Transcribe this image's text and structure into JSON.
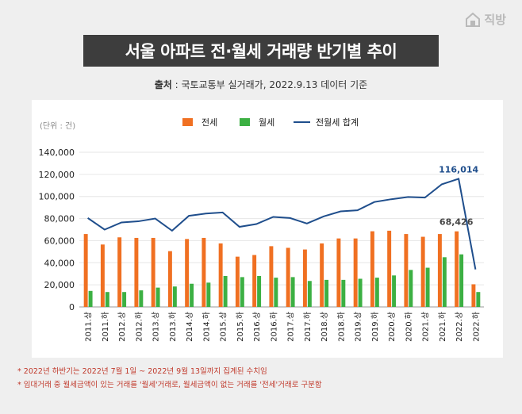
{
  "logo": {
    "text": "직방",
    "icon": "house-icon"
  },
  "title": "서울 아파트 전·월세 거래량 반기별 추이",
  "source": {
    "label": "출처",
    "text": " : 국토교통부 실거래가, 2022.9.13 데이터 기준"
  },
  "notes": [
    "* 2022년 하반기는 2022년 7월 1일 ~ 2022년 9월 13일까지 집계된 수치임",
    "* 임대거래 중 월세금액이 있는 거래를 '월세'거래로, 월세금액이 없는 거래를 '전세'거래로 구분함"
  ],
  "chart_data": {
    "type": "bar",
    "unit_label": "(단위 : 건)",
    "categories": [
      "2011.상",
      "2011.하",
      "2012.상",
      "2012.하",
      "2013.상",
      "2013.하",
      "2014.상",
      "2014.하",
      "2015.상",
      "2015.하",
      "2016.상",
      "2016.하",
      "2017.상",
      "2017.하",
      "2018.상",
      "2018.하",
      "2019.상",
      "2019.하",
      "2020.상",
      "2020.하",
      "2021.상",
      "2021.하",
      "2022.상",
      "2022.하"
    ],
    "series": [
      {
        "name": "전세",
        "type": "bar",
        "color": "#f07022",
        "values": [
          66000,
          56500,
          63000,
          62500,
          62500,
          50500,
          61500,
          62500,
          57500,
          45500,
          47000,
          55000,
          53500,
          52000,
          57500,
          62000,
          62000,
          68500,
          69000,
          66000,
          63500,
          66000,
          68426,
          20500
        ]
      },
      {
        "name": "월세",
        "type": "bar",
        "color": "#3cb043",
        "values": [
          14500,
          13500,
          13500,
          15000,
          17500,
          18500,
          21000,
          22000,
          28000,
          27000,
          28000,
          26500,
          27000,
          23500,
          24500,
          24500,
          25500,
          26500,
          28500,
          33500,
          35500,
          45000,
          47588,
          13500
        ]
      },
      {
        "name": "전월세 합계",
        "type": "line",
        "color": "#1f4e8c",
        "values": [
          80500,
          70000,
          76500,
          77500,
          80000,
          69000,
          82500,
          84500,
          85500,
          72500,
          75000,
          81500,
          80500,
          75500,
          82000,
          86500,
          87500,
          95000,
          97500,
          99500,
          99000,
          111000,
          116014,
          34000
        ]
      }
    ],
    "ylim": [
      0,
      140000
    ],
    "yticks": [
      "0",
      "20,000",
      "40,000",
      "60,000",
      "80,000",
      "100,000",
      "120,000",
      "140,000"
    ],
    "annotations": [
      {
        "text": "116,014",
        "series": "전월세 합계",
        "category": "2022.상"
      },
      {
        "text": "68,426",
        "series": "전세",
        "category": "2022.상"
      }
    ],
    "legend_position": "top-center",
    "grid": "horizontal"
  }
}
